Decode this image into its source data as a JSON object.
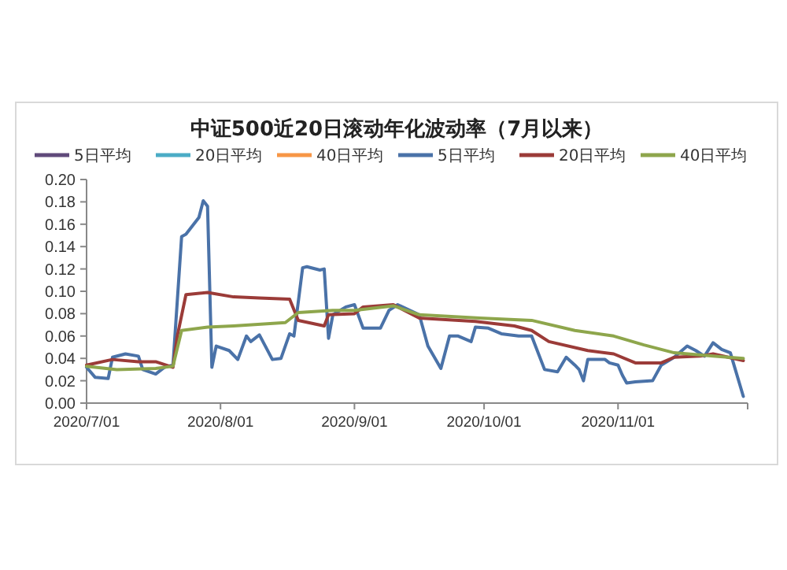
{
  "chart_data": {
    "type": "line",
    "title": "中证500近20日滚动年化波动率（7月以来）",
    "legend": "top",
    "xlim": [
      "2020-07-01",
      "2020-12-01"
    ],
    "xticks": [
      {
        "value": "2020-07-01",
        "label": "2020/7/01"
      },
      {
        "value": "2020-08-01",
        "label": "2020/8/01"
      },
      {
        "value": "2020-09-01",
        "label": "2020/9/01"
      },
      {
        "value": "2020-10-01",
        "label": "2020/10/01"
      },
      {
        "value": "2020-11-01",
        "label": "2020/11/01"
      },
      {
        "value": "2020-12-01",
        "label": null
      }
    ],
    "ylim": [
      0,
      0.2
    ],
    "yticks": [
      {
        "value": 0,
        "label": "0.00"
      },
      {
        "value": 0.02,
        "label": "0.02"
      },
      {
        "value": 0.04,
        "label": "0.04"
      },
      {
        "value": 0.06,
        "label": "0.06"
      },
      {
        "value": 0.08,
        "label": "0.08"
      },
      {
        "value": 0.1,
        "label": "0.10"
      },
      {
        "value": 0.12,
        "label": "0.12"
      },
      {
        "value": 0.14,
        "label": "0.14"
      },
      {
        "value": 0.16,
        "label": "0.16"
      },
      {
        "value": 0.18,
        "label": "0.18"
      },
      {
        "value": 0.2,
        "label": "0.20"
      }
    ],
    "grid": false,
    "marker": "none",
    "line_style": "solid",
    "series": [
      {
        "name": "5日平均",
        "color": "#604a7b"
      },
      {
        "name": "20日平均",
        "color": "#4bacc6"
      },
      {
        "name": "40日平均",
        "color": "#f79646"
      },
      {
        "name": "5日平均",
        "color": "#4a72a8",
        "x": [
          "2020-07-01",
          "2020-07-03",
          "2020-07-06",
          "2020-07-07",
          "2020-07-10",
          "2020-07-13",
          "2020-07-14",
          "2020-07-17",
          "2020-07-19",
          "2020-07-21",
          "2020-07-23",
          "2020-07-24",
          "2020-07-27",
          "2020-07-28",
          "2020-07-29",
          "2020-07-30",
          "2020-07-31",
          "2020-08-03",
          "2020-08-05",
          "2020-08-07",
          "2020-08-08",
          "2020-08-10",
          "2020-08-13",
          "2020-08-15",
          "2020-08-17",
          "2020-08-18",
          "2020-08-20",
          "2020-08-21",
          "2020-08-24",
          "2020-08-25",
          "2020-08-26",
          "2020-08-27",
          "2020-08-30",
          "2020-09-01",
          "2020-09-03",
          "2020-09-07",
          "2020-09-09",
          "2020-09-11",
          "2020-09-16",
          "2020-09-18",
          "2020-09-21",
          "2020-09-23",
          "2020-09-25",
          "2020-09-28",
          "2020-09-29",
          "2020-10-02",
          "2020-10-05",
          "2020-10-09",
          "2020-10-12",
          "2020-10-15",
          "2020-10-18",
          "2020-10-20",
          "2020-10-22",
          "2020-10-23",
          "2020-10-24",
          "2020-10-25",
          "2020-10-27",
          "2020-10-29",
          "2020-10-30",
          "2020-11-01",
          "2020-11-02",
          "2020-11-03",
          "2020-11-05",
          "2020-11-09",
          "2020-11-11",
          "2020-11-14",
          "2020-11-17",
          "2020-11-19",
          "2020-11-21",
          "2020-11-23",
          "2020-11-25",
          "2020-11-27",
          "2020-11-28",
          "2020-11-30"
        ],
        "values": [
          0.032,
          0.023,
          0.022,
          0.041,
          0.044,
          0.042,
          0.03,
          0.026,
          0.032,
          0.034,
          0.149,
          0.151,
          0.166,
          0.181,
          0.176,
          0.032,
          0.051,
          0.047,
          0.039,
          0.06,
          0.055,
          0.061,
          0.039,
          0.04,
          0.062,
          0.06,
          0.121,
          0.122,
          0.119,
          0.12,
          0.058,
          0.079,
          0.086,
          0.088,
          0.067,
          0.067,
          0.083,
          0.088,
          0.079,
          0.051,
          0.031,
          0.06,
          0.06,
          0.055,
          0.068,
          0.067,
          0.062,
          0.06,
          0.06,
          0.03,
          0.028,
          0.041,
          0.034,
          0.03,
          0.02,
          0.039,
          0.039,
          0.039,
          0.036,
          0.034,
          0.025,
          0.018,
          0.019,
          0.02,
          0.034,
          0.041,
          0.051,
          0.047,
          0.042,
          0.054,
          0.048,
          0.045,
          0.032,
          0.006
        ]
      },
      {
        "name": "20日平均",
        "color": "#9b3b38",
        "x": [
          "2020-07-01",
          "2020-07-07",
          "2020-07-13",
          "2020-07-17",
          "2020-07-21",
          "2020-07-22",
          "2020-07-24",
          "2020-07-29",
          "2020-08-04",
          "2020-08-10",
          "2020-08-17",
          "2020-08-19",
          "2020-08-25",
          "2020-08-26",
          "2020-09-01",
          "2020-09-03",
          "2020-09-10",
          "2020-09-16",
          "2020-09-29",
          "2020-10-08",
          "2020-10-12",
          "2020-10-16",
          "2020-10-25",
          "2020-10-31",
          "2020-11-05",
          "2020-11-11",
          "2020-11-14",
          "2020-11-20",
          "2020-11-23",
          "2020-11-30"
        ],
        "values": [
          0.034,
          0.039,
          0.037,
          0.037,
          0.032,
          0.06,
          0.097,
          0.099,
          0.095,
          0.094,
          0.093,
          0.074,
          0.069,
          0.079,
          0.08,
          0.086,
          0.088,
          0.076,
          0.073,
          0.069,
          0.065,
          0.055,
          0.047,
          0.044,
          0.036,
          0.036,
          0.041,
          0.042,
          0.044,
          0.038
        ]
      },
      {
        "name": "40日平均",
        "color": "#8ea64c",
        "x": [
          "2020-07-01",
          "2020-07-08",
          "2020-07-17",
          "2020-07-21",
          "2020-07-23",
          "2020-07-29",
          "2020-08-04",
          "2020-08-16",
          "2020-08-19",
          "2020-08-27",
          "2020-09-01",
          "2020-09-10",
          "2020-09-16",
          "2020-09-30",
          "2020-10-12",
          "2020-10-22",
          "2020-10-31",
          "2020-11-07",
          "2020-11-14",
          "2020-11-23",
          "2020-11-30"
        ],
        "values": [
          0.033,
          0.03,
          0.031,
          0.033,
          0.065,
          0.068,
          0.069,
          0.072,
          0.081,
          0.083,
          0.083,
          0.087,
          0.079,
          0.076,
          0.074,
          0.065,
          0.06,
          0.052,
          0.045,
          0.042,
          0.04
        ]
      }
    ]
  }
}
